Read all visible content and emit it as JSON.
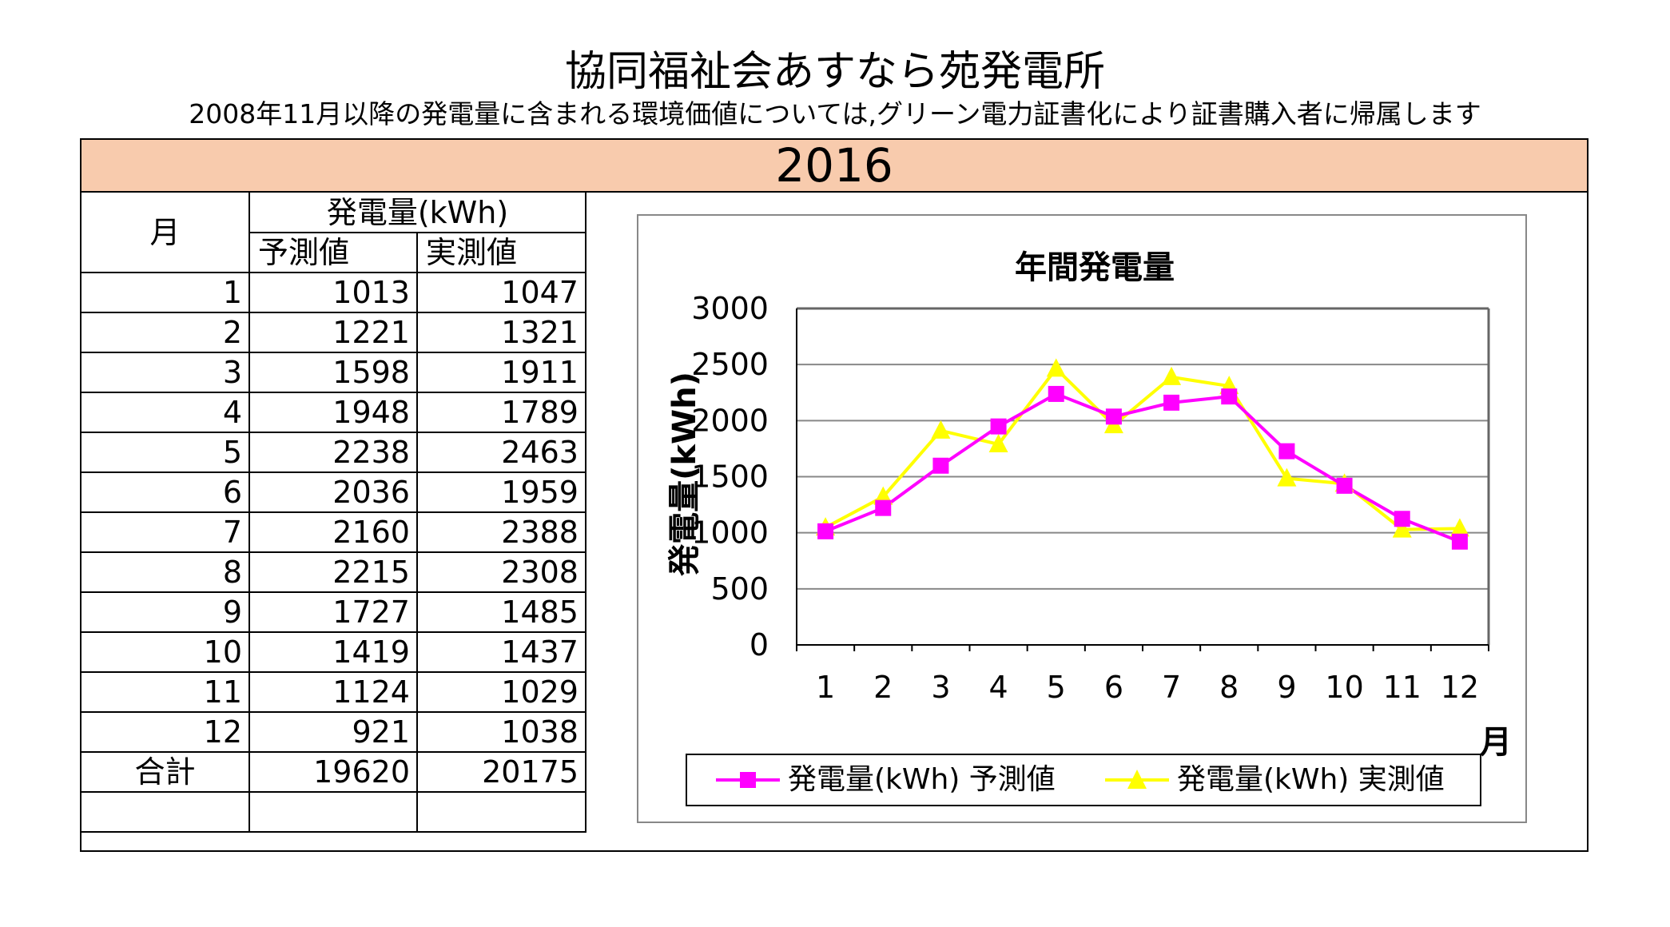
{
  "title": "協同福祉会あすなら苑発電所",
  "subtitle": "2008年11月以降の発電量に含まれる環境価値については,グリーン電力証書化により証書購入者に帰属します",
  "year": "2016",
  "table": {
    "month_header": "月",
    "group_header": "発電量(kWh)",
    "col_forecast": "予測値",
    "col_actual": "実測値",
    "rows": [
      {
        "month": "1",
        "forecast": "1013",
        "actual": "1047"
      },
      {
        "month": "2",
        "forecast": "1221",
        "actual": "1321"
      },
      {
        "month": "3",
        "forecast": "1598",
        "actual": "1911"
      },
      {
        "month": "4",
        "forecast": "1948",
        "actual": "1789"
      },
      {
        "month": "5",
        "forecast": "2238",
        "actual": "2463"
      },
      {
        "month": "6",
        "forecast": "2036",
        "actual": "1959"
      },
      {
        "month": "7",
        "forecast": "2160",
        "actual": "2388"
      },
      {
        "month": "8",
        "forecast": "2215",
        "actual": "2308"
      },
      {
        "month": "9",
        "forecast": "1727",
        "actual": "1485"
      },
      {
        "month": "10",
        "forecast": "1419",
        "actual": "1437"
      },
      {
        "month": "11",
        "forecast": "1124",
        "actual": "1029"
      },
      {
        "month": "12",
        "forecast": "921",
        "actual": "1038"
      }
    ],
    "total_label": "合計",
    "total_forecast": "19620",
    "total_actual": "20175"
  },
  "chart_data": {
    "type": "line",
    "title": "年間発電量",
    "xlabel": "月",
    "ylabel": "発電量(kWh)",
    "categories": [
      "1",
      "2",
      "3",
      "4",
      "5",
      "6",
      "7",
      "8",
      "9",
      "10",
      "11",
      "12"
    ],
    "ylim": [
      0,
      3000
    ],
    "yticks": [
      "0",
      "500",
      "1000",
      "1500",
      "2000",
      "2500",
      "3000"
    ],
    "grid": true,
    "legend_position": "bottom",
    "series": [
      {
        "name": "発電量(kWh) 予測値",
        "marker": "square",
        "color": "#ff00ff",
        "values": [
          1013,
          1221,
          1598,
          1948,
          2238,
          2036,
          2160,
          2215,
          1727,
          1419,
          1124,
          921
        ]
      },
      {
        "name": "発電量(kWh) 実測値",
        "marker": "triangle",
        "color": "#ffff00",
        "values": [
          1047,
          1321,
          1911,
          1789,
          2463,
          1959,
          2388,
          2308,
          1485,
          1437,
          1029,
          1038
        ]
      }
    ]
  }
}
